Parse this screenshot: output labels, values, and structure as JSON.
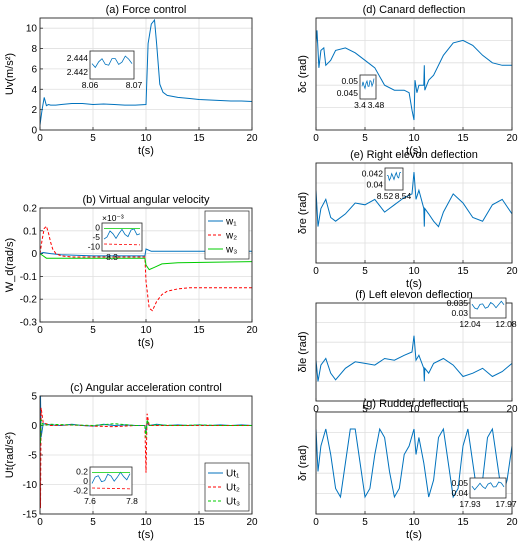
{
  "colors": {
    "blue": "#0072BD",
    "red": "#FF0000",
    "green": "#00CC00",
    "axis": "#262626",
    "grid": "#DFDFDF"
  },
  "chart_data": [
    {
      "id": "a",
      "type": "line",
      "title": "(a) Force control",
      "xlabel": "t(s)",
      "ylabel": "Uv(m/s²)",
      "xlim": [
        0,
        20
      ],
      "ylim": [
        0,
        11
      ],
      "xticks": [
        "0",
        "5",
        "10",
        "15",
        "20"
      ],
      "yticks": [
        "0",
        "2",
        "4",
        "6",
        "8",
        "10"
      ],
      "grid": true,
      "series": [
        {
          "color": "#0072BD",
          "style": "solid",
          "x": [
            0,
            0.2,
            0.4,
            0.6,
            0.8,
            1,
            1.5,
            2,
            3,
            4,
            5,
            6,
            7,
            8,
            9,
            10,
            10.2,
            10.5,
            10.8,
            11,
            11.3,
            11.6,
            12,
            13,
            14,
            15,
            16,
            17,
            18,
            19,
            20
          ],
          "y": [
            0.5,
            2,
            3.2,
            2.4,
            2.5,
            2.45,
            2.45,
            2.5,
            2.6,
            2.6,
            2.5,
            2.55,
            2.5,
            2.45,
            2.45,
            2.5,
            8.5,
            10.4,
            10.8,
            8.5,
            4.5,
            3.7,
            3.4,
            3.2,
            3.1,
            3,
            2.95,
            2.9,
            2.85,
            2.85,
            2.8
          ]
        }
      ],
      "inset": {
        "ylabels": [
          "2.444",
          "2.442"
        ],
        "xlabels": [
          "8.06",
          "8.07"
        ]
      }
    },
    {
      "id": "b",
      "type": "line",
      "title": "(b) Virtual angular velocity",
      "xlabel": "t(s)",
      "ylabel": "W_d(rad/s)",
      "xlim": [
        0,
        20
      ],
      "ylim": [
        -0.3,
        0.2
      ],
      "xticks": [
        "0",
        "5",
        "10",
        "15",
        "20"
      ],
      "yticks": [
        "-0.3",
        "-0.2",
        "-0.1",
        "0",
        "0.1",
        "0.2"
      ],
      "grid": true,
      "legend": {
        "position": "top-right",
        "labels": [
          "w₁",
          "w₂",
          "w₃"
        ]
      },
      "series": [
        {
          "name": "w₁",
          "color": "#0072BD",
          "style": "solid",
          "x": [
            0,
            0.3,
            1,
            2,
            5,
            9.9,
            10,
            10.5,
            11,
            13,
            20
          ],
          "y": [
            0,
            0.005,
            0,
            -0.005,
            -0.01,
            -0.01,
            0.02,
            0.01,
            0.01,
            0.01,
            0.01
          ]
        },
        {
          "name": "w₂",
          "color": "#FF0000",
          "style": "dashed",
          "x": [
            0,
            0.2,
            0.4,
            0.6,
            0.8,
            1,
            1.2,
            1.5,
            2,
            3,
            5,
            9.9,
            10,
            10.3,
            10.6,
            11,
            11.5,
            12,
            13,
            14,
            20
          ],
          "y": [
            0,
            0.06,
            0.11,
            0.12,
            0.09,
            0.05,
            0.02,
            0,
            -0.01,
            -0.015,
            -0.015,
            -0.015,
            -0.12,
            -0.24,
            -0.25,
            -0.21,
            -0.18,
            -0.165,
            -0.155,
            -0.15,
            -0.15
          ]
        },
        {
          "name": "w₃",
          "color": "#00CC00",
          "style": "solid",
          "x": [
            0,
            0.3,
            0.6,
            1,
            2,
            5,
            9.9,
            10,
            10.3,
            10.8,
            11.5,
            13,
            20
          ],
          "y": [
            0,
            -0.01,
            -0.02,
            -0.02,
            -0.02,
            -0.02,
            -0.02,
            -0.05,
            -0.07,
            -0.06,
            -0.045,
            -0.04,
            -0.035
          ]
        }
      ],
      "inset": {
        "multiplier": "×10⁻³",
        "ylabels": [
          "0",
          "-5",
          "-10"
        ],
        "xlabels": [
          "8.3"
        ]
      }
    },
    {
      "id": "c",
      "type": "line",
      "title": "(c) Angular acceleration control",
      "xlabel": "t(s)",
      "ylabel": "Ut(rad/s²)",
      "xlim": [
        0,
        20
      ],
      "ylim": [
        -15,
        5
      ],
      "xticks": [
        "0",
        "5",
        "10",
        "15",
        "20"
      ],
      "yticks": [
        "-15",
        "-10",
        "-5",
        "0",
        "5"
      ],
      "grid": true,
      "legend": {
        "position": "bottom-right",
        "labels": [
          "Ut₁",
          "Ut₂",
          "Ut₃"
        ]
      },
      "series": [
        {
          "name": "Ut₁",
          "color": "#0072BD",
          "style": "solid",
          "x": [
            0,
            0.05,
            0.1,
            0.3,
            1,
            2,
            3,
            4,
            5,
            6,
            7,
            8,
            9,
            9.9,
            10,
            10.1,
            10.3,
            11,
            12,
            13,
            14,
            15,
            16,
            17,
            18,
            19,
            20
          ],
          "y": [
            0,
            5,
            -2,
            0.3,
            0.1,
            0,
            0.2,
            0,
            -0.1,
            0.2,
            0,
            0.1,
            0,
            0,
            -1,
            0.5,
            0,
            0.2,
            0,
            0.1,
            0,
            0.1,
            0,
            0.1,
            0,
            0.1,
            0
          ]
        },
        {
          "name": "Ut₂",
          "color": "#FF0000",
          "style": "dashed",
          "x": [
            0,
            0.05,
            0.1,
            0.3,
            1,
            3,
            5,
            7,
            9,
            9.9,
            10,
            10.1,
            10.3,
            11,
            13,
            15,
            17,
            20
          ],
          "y": [
            0,
            -14,
            3,
            0.5,
            0,
            0.1,
            -0.1,
            -0.2,
            0,
            0,
            -8,
            2,
            0,
            0,
            0,
            0,
            0,
            0
          ]
        },
        {
          "name": "Ut₃",
          "color": "#00CC00",
          "style": "dashed",
          "x": [
            0,
            0.05,
            0.1,
            0.3,
            1,
            3,
            5,
            7,
            9,
            9.9,
            10,
            10.1,
            10.3,
            11,
            13,
            15,
            17,
            20
          ],
          "y": [
            0,
            -3,
            1,
            0,
            0.2,
            0.1,
            0,
            0.3,
            0,
            0,
            -2,
            1,
            0,
            0.1,
            0,
            0.1,
            0,
            0
          ]
        }
      ],
      "inset": {
        "ylabels": [
          "0.2",
          "0",
          "-0.2"
        ],
        "xlabels": [
          "7.6",
          "7.8"
        ]
      }
    },
    {
      "id": "d",
      "type": "line",
      "title": "(d) Canard deflection",
      "xlabel": "t(s)",
      "ylabel": "δc (rad)",
      "xlim": [
        0,
        20
      ],
      "ylim": [
        -0.3,
        0.15
      ],
      "xticks": [
        "0",
        "5",
        "10",
        "15",
        "20"
      ],
      "yticks": [],
      "grid": true,
      "series": [
        {
          "color": "#0072BD",
          "style": "solid",
          "x": [
            0,
            0.1,
            0.3,
            0.5,
            0.8,
            1,
            1.5,
            2,
            3,
            4,
            5,
            6,
            7,
            8,
            9,
            9.5,
            9.8,
            10,
            10.1,
            10.3,
            10.5,
            11,
            11.05,
            11.1,
            11.5,
            12,
            13,
            14,
            15,
            16,
            17,
            18,
            19,
            20
          ],
          "y": [
            0.05,
            0.1,
            -0.05,
            0.02,
            0.03,
            -0.04,
            -0.02,
            0.02,
            0.03,
            0.01,
            -0.02,
            -0.05,
            -0.12,
            -0.14,
            -0.14,
            -0.15,
            -0.22,
            -0.26,
            -0.1,
            -0.15,
            -0.12,
            -0.12,
            -0.04,
            -0.14,
            -0.1,
            -0.08,
            0,
            0.05,
            0.06,
            0.04,
            0,
            -0.03,
            -0.04,
            -0.04
          ]
        }
      ],
      "inset": {
        "ylabels": [
          "0.05",
          "0.045"
        ],
        "xlabels": [
          "3.4",
          "3.48"
        ]
      }
    },
    {
      "id": "e",
      "type": "line",
      "title": "(e) Right elevon deflection",
      "xlabel": "t(s)",
      "ylabel": "δre (rad)",
      "xlim": [
        0,
        20
      ],
      "ylim": [
        -0.3,
        0.25
      ],
      "xticks": [
        "0",
        "5",
        "10",
        "15",
        "20"
      ],
      "yticks": [],
      "grid": true,
      "series": [
        {
          "color": "#0072BD",
          "style": "solid",
          "x": [
            0,
            0.2,
            0.5,
            1,
            1.5,
            2,
            3,
            4,
            5,
            6,
            7,
            8,
            9,
            9.8,
            10,
            10.2,
            10.5,
            11,
            11.05,
            11.1,
            11.5,
            12,
            12.5,
            13,
            14,
            15,
            16,
            17,
            18,
            19,
            20
          ],
          "y": [
            0.1,
            -0.1,
            0,
            0.05,
            -0.05,
            -0.07,
            -0.03,
            0.03,
            0.02,
            0.05,
            -0.02,
            0.02,
            0.06,
            0.08,
            0.2,
            0.05,
            0.1,
            0,
            -0.1,
            0,
            -0.03,
            -0.07,
            -0.1,
            -0.02,
            0.08,
            0.03,
            -0.05,
            -0.07,
            0.02,
            0.05,
            -0.03
          ]
        }
      ],
      "inset": {
        "ylabels": [
          "0.042",
          "0.04"
        ],
        "xlabels": [
          "8.52",
          "8.54"
        ]
      }
    },
    {
      "id": "f",
      "type": "line",
      "title": "(f) Left elevon deflection",
      "xlabel": "t(s)",
      "ylabel": "δle (rad)",
      "xlim": [
        0,
        20
      ],
      "ylim": [
        -0.2,
        0.4
      ],
      "xticks": [
        "0",
        "5",
        "10",
        "15",
        "20"
      ],
      "yticks": [],
      "grid": true,
      "series": [
        {
          "color": "#0072BD",
          "style": "solid",
          "x": [
            0,
            0.2,
            0.5,
            1,
            1.5,
            2,
            3,
            4,
            5,
            6,
            7,
            8,
            9,
            9.8,
            10,
            10.2,
            10.5,
            11,
            11.05,
            11.1,
            11.5,
            12,
            13,
            14,
            15,
            16,
            17,
            18,
            19,
            20
          ],
          "y": [
            0.05,
            -0.08,
            0.02,
            0.06,
            -0.03,
            -0.07,
            0,
            0.04,
            0.03,
            0.02,
            0.06,
            0.05,
            0.08,
            0.1,
            0.2,
            0.05,
            0.08,
            0,
            -0.08,
            0,
            -0.03,
            0.03,
            0.06,
            0.02,
            -0.05,
            -0.03,
            0,
            -0.05,
            -0.02,
            0.03
          ]
        }
      ],
      "inset": {
        "ylabels": [
          "0.035",
          "0.03"
        ],
        "xlabels": [
          "12.04",
          "12.08"
        ]
      }
    },
    {
      "id": "g",
      "type": "line",
      "title": "(g) Rudder deflection",
      "xlabel": "t(s)",
      "ylabel": "δr (rad)",
      "xlim": [
        0,
        20
      ],
      "ylim": [
        -0.3,
        0.3
      ],
      "xticks": [
        "0",
        "5",
        "10",
        "15",
        "20"
      ],
      "yticks": [],
      "grid": true,
      "series": [
        {
          "color": "#0072BD",
          "style": "solid",
          "x": [
            0,
            0.2,
            0.5,
            1,
            1.5,
            2,
            2.5,
            3,
            3.5,
            4,
            4.5,
            5,
            5.5,
            6,
            6.5,
            7,
            7.5,
            8,
            8.5,
            9,
            9.5,
            10,
            10.2,
            10.5,
            11,
            11.5,
            12,
            12.5,
            13,
            13.5,
            14,
            14.5,
            15,
            15.5,
            16,
            16.5,
            17,
            17.5,
            18,
            18.5,
            19,
            19.5,
            20
          ],
          "y": [
            0.2,
            -0.05,
            0.1,
            0.2,
            0.05,
            -0.15,
            -0.2,
            0,
            0.2,
            0.2,
            0,
            -0.2,
            -0.15,
            0.05,
            0.2,
            0.15,
            -0.05,
            -0.2,
            -0.15,
            0.05,
            0.1,
            0.2,
            0.05,
            0.15,
            0,
            -0.2,
            -0.1,
            0.15,
            0.2,
            0,
            -0.2,
            -0.15,
            0.1,
            0.2,
            0,
            -0.2,
            -0.1,
            0.15,
            0.2,
            0,
            -0.2,
            -0.1,
            0.1
          ]
        }
      ],
      "inset": {
        "ylabels": [
          "0.05",
          "0.04"
        ],
        "xlabels": [
          "17.93",
          "17.97"
        ]
      }
    }
  ]
}
